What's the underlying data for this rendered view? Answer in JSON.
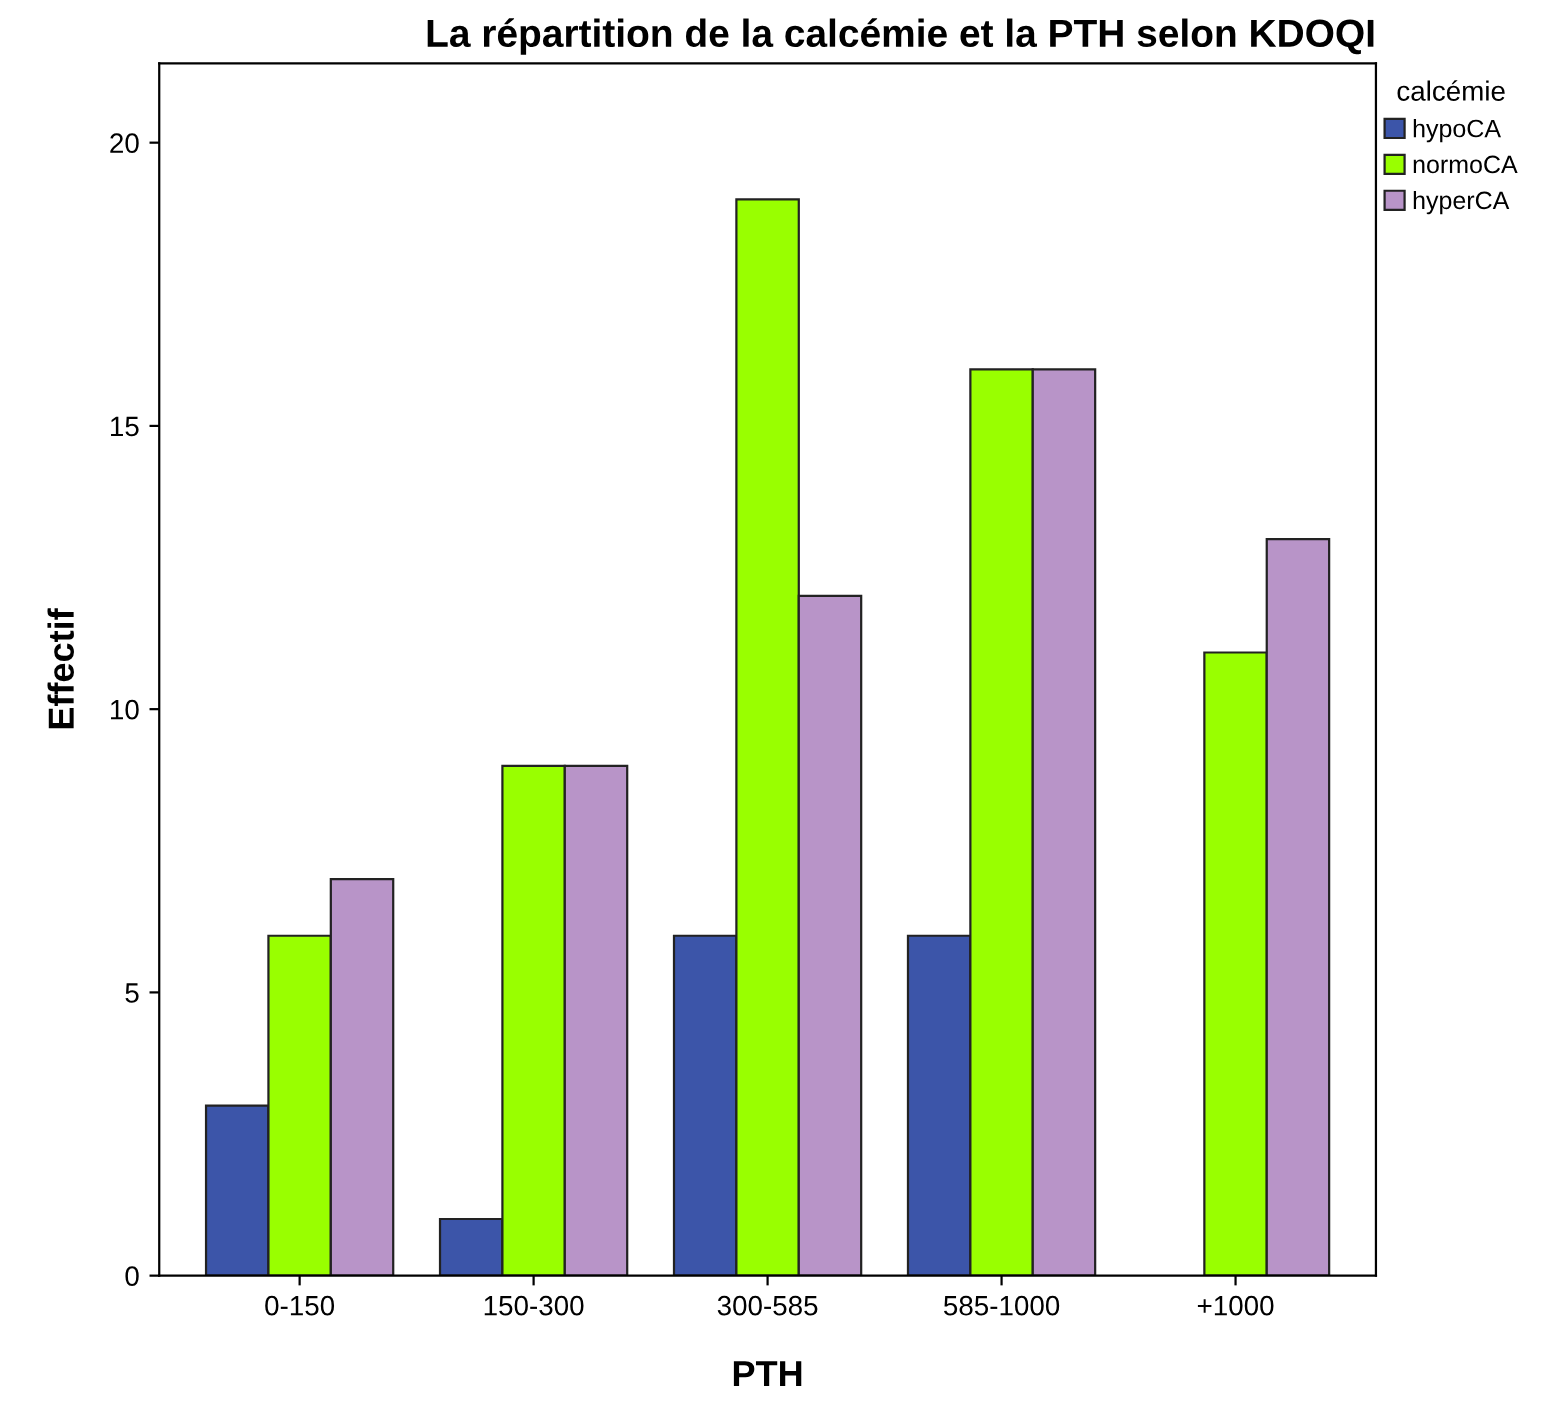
{
  "chart_data": {
    "type": "bar",
    "title": "La répartition de la calcémie et la PTH selon KDOQI",
    "xlabel": "PTH",
    "ylabel": "Effectif",
    "legend_title": "calcémie",
    "categories": [
      "0-150",
      "150-300",
      "300-585",
      "585-1000",
      "+1000"
    ],
    "series": [
      {
        "name": "hypoCA",
        "color": "#3c55a9",
        "values": [
          3,
          1,
          6,
          6,
          null
        ]
      },
      {
        "name": "normoCA",
        "color": "#99ff00",
        "values": [
          6,
          9,
          19,
          16,
          11
        ]
      },
      {
        "name": "hyperCA",
        "color": "#b894c8",
        "values": [
          7,
          9,
          12,
          16,
          13
        ]
      }
    ],
    "ylim": [
      0,
      21.4
    ],
    "yticks": [
      0,
      5,
      10,
      15,
      20
    ],
    "grid": false,
    "legend": "top right"
  }
}
